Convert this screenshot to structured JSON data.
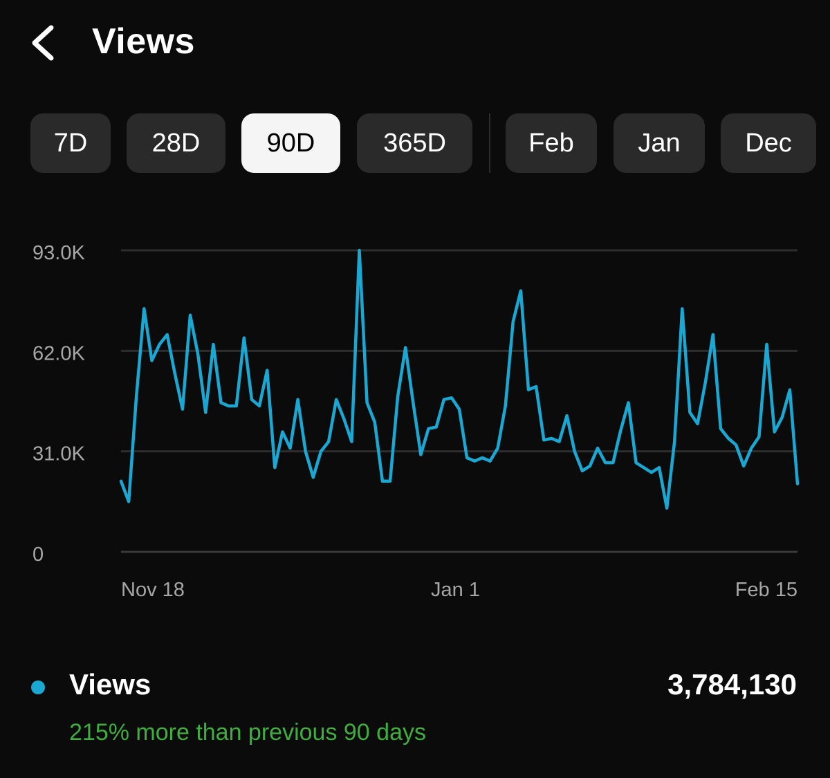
{
  "header": {
    "title": "Views",
    "back_icon": "chevron-left-icon"
  },
  "range_chips": [
    {
      "label": "7D",
      "active": false
    },
    {
      "label": "28D",
      "active": false
    },
    {
      "label": "90D",
      "active": true
    },
    {
      "label": "365D",
      "active": false
    }
  ],
  "month_chips": [
    {
      "label": "Feb",
      "active": false
    },
    {
      "label": "Jan",
      "active": false
    },
    {
      "label": "Dec",
      "active": false
    }
  ],
  "colors": {
    "background": "#0b0b0b",
    "series": "#1aa7d2",
    "positive": "#3fae3f",
    "chip": "#2a2a2a",
    "chip_active": "#f5f5f5"
  },
  "chart_data": {
    "type": "line",
    "title": "",
    "xlabel": "",
    "ylabel": "",
    "ylim": [
      0,
      93000
    ],
    "y_ticks": [
      {
        "value": 93000,
        "label": "93.0K"
      },
      {
        "value": 62000,
        "label": "62.0K"
      },
      {
        "value": 31000,
        "label": "31.0K"
      },
      {
        "value": 0,
        "label": "0"
      }
    ],
    "x_ticks": [
      {
        "date": "2023-11-18",
        "label": "Nov 18",
        "align": "start"
      },
      {
        "date": "2024-01-01",
        "label": "Jan 1",
        "align": "middle"
      },
      {
        "date": "2024-02-15",
        "label": "Feb 15",
        "align": "end"
      }
    ],
    "x_range": [
      "2023-11-18",
      "2024-02-15"
    ],
    "grid": true,
    "series": [
      {
        "name": "Views",
        "values": [
          21800,
          15500,
          48000,
          75000,
          59000,
          64000,
          67000,
          55000,
          44000,
          73000,
          61000,
          43000,
          64000,
          46000,
          45000,
          45000,
          66000,
          47000,
          45000,
          56000,
          26000,
          37000,
          32000,
          47000,
          31000,
          23000,
          31000,
          34000,
          47000,
          41000,
          34000,
          93000,
          46000,
          40000,
          21800,
          21800,
          48000,
          63000,
          46000,
          30000,
          38000,
          38500,
          47000,
          47500,
          44000,
          29000,
          28000,
          29000,
          28000,
          32000,
          45000,
          71000,
          80500,
          50000,
          51000,
          34500,
          35000,
          34000,
          42000,
          31000,
          25000,
          26500,
          32000,
          27500,
          27500,
          37500,
          46000,
          27500,
          26000,
          24500,
          26000,
          13500,
          34000,
          75000,
          43000,
          39500,
          52000,
          67000,
          38000,
          35000,
          33000,
          26500,
          32000,
          35500,
          64000,
          37000,
          41500,
          50000,
          21000
        ]
      }
    ]
  },
  "legend": {
    "label": "Views",
    "total": "3,784,130",
    "comparison": "215% more than previous 90 days"
  }
}
